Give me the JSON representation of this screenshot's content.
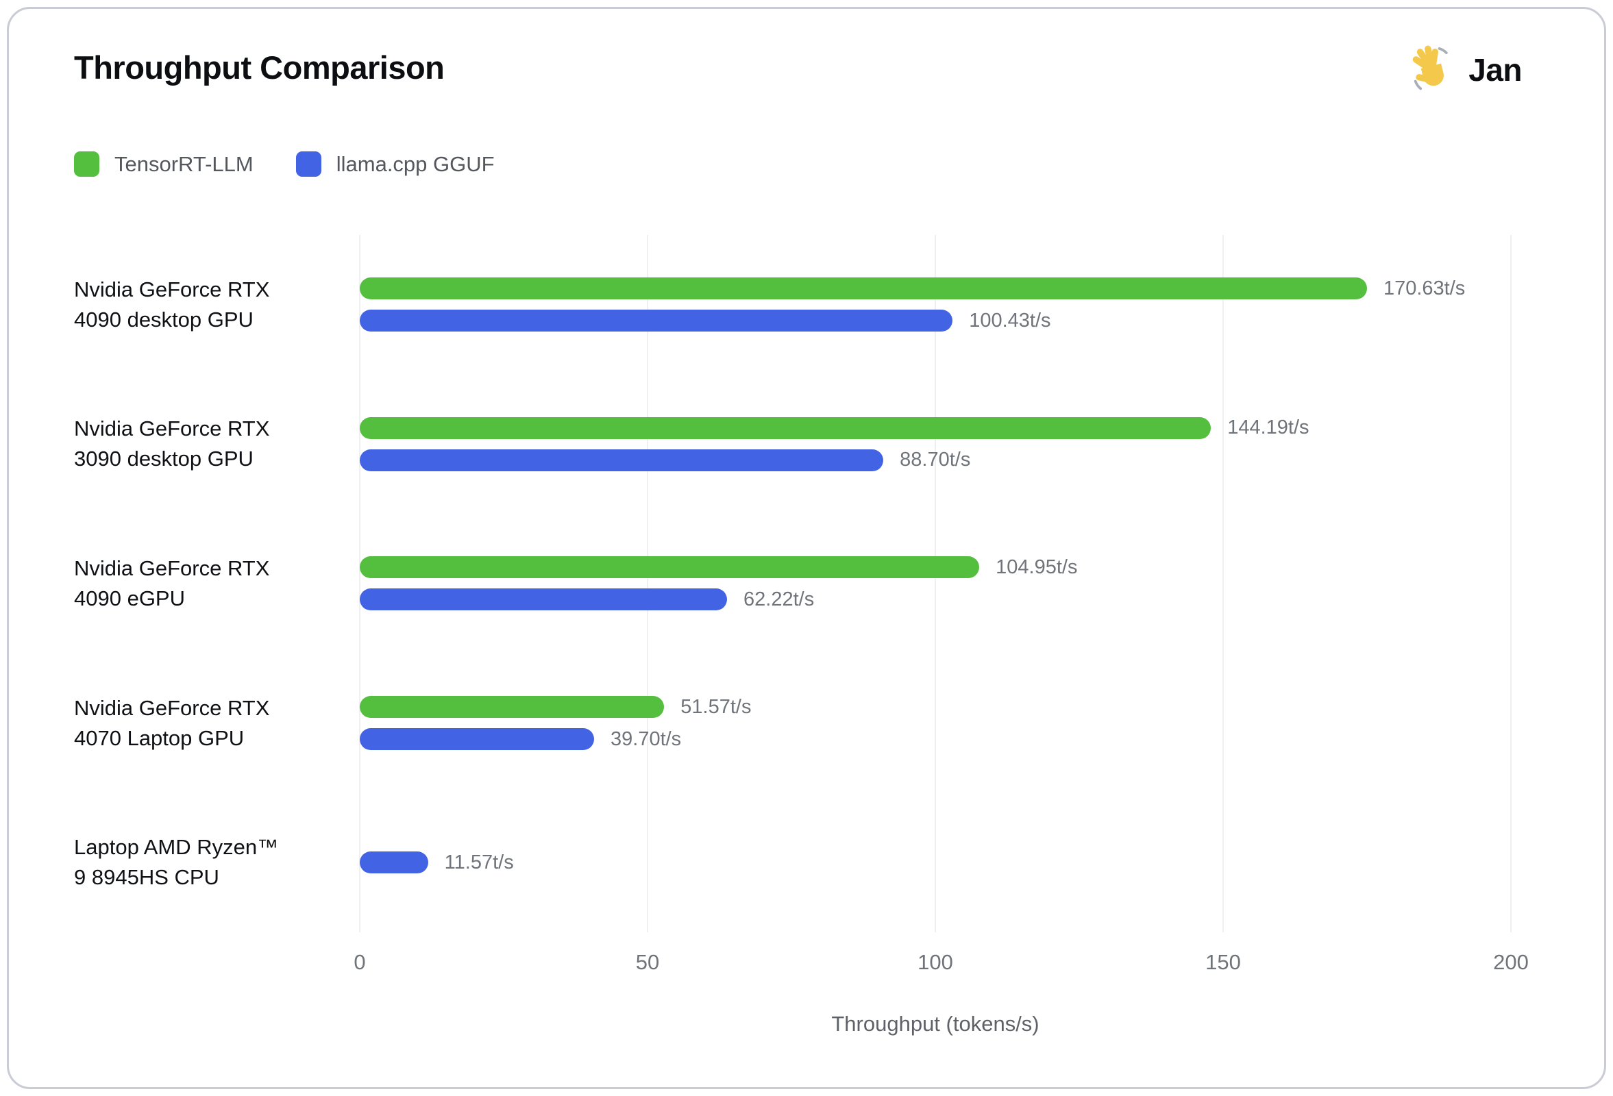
{
  "header": {
    "title": "Throughput Comparison",
    "logo_text": "Jan",
    "logo_icon": "waving-hand-emoji"
  },
  "legend": [
    {
      "label": "TensorRT-LLM",
      "color": "#54be3e"
    },
    {
      "label": "llama.cpp GGUF",
      "color": "#4263e3"
    }
  ],
  "chart_data": {
    "type": "bar",
    "orientation": "horizontal",
    "title": "Throughput Comparison",
    "xlabel": "Throughput (tokens/s)",
    "xlim": [
      0,
      200
    ],
    "x_ticks": [
      "0",
      "50",
      "100",
      "150",
      "200"
    ],
    "grid": "vertical",
    "legend_position": "top-left",
    "unit": "t/s",
    "series_names": [
      "TensorRT-LLM",
      "llama.cpp GGUF"
    ],
    "colors": {
      "TensorRT-LLM": "#54be3e",
      "llama.cpp GGUF": "#4263e3"
    },
    "rows": [
      {
        "label_lines": [
          "Nvidia GeForce RTX",
          "4090 desktop GPU"
        ],
        "bars": [
          {
            "series": "TensorRT-LLM",
            "value": 170.63,
            "label": "170.63t/s"
          },
          {
            "series": "llama.cpp GGUF",
            "value": 100.43,
            "label": "100.43t/s"
          }
        ]
      },
      {
        "label_lines": [
          "Nvidia GeForce RTX",
          "3090 desktop GPU"
        ],
        "bars": [
          {
            "series": "TensorRT-LLM",
            "value": 144.19,
            "label": "144.19t/s"
          },
          {
            "series": "llama.cpp GGUF",
            "value": 88.7,
            "label": "88.70t/s"
          }
        ]
      },
      {
        "label_lines": [
          "Nvidia GeForce RTX",
          "4090 eGPU"
        ],
        "bars": [
          {
            "series": "TensorRT-LLM",
            "value": 104.95,
            "label": "104.95t/s"
          },
          {
            "series": "llama.cpp GGUF",
            "value": 62.22,
            "label": "62.22t/s"
          }
        ]
      },
      {
        "label_lines": [
          "Nvidia GeForce RTX",
          "4070 Laptop GPU"
        ],
        "bars": [
          {
            "series": "TensorRT-LLM",
            "value": 51.57,
            "label": "51.57t/s"
          },
          {
            "series": "llama.cpp GGUF",
            "value": 39.7,
            "label": "39.70t/s"
          }
        ]
      },
      {
        "label_lines": [
          "Laptop AMD Ryzen™",
          "9 8945HS CPU"
        ],
        "bars": [
          {
            "series": "llama.cpp GGUF",
            "value": 11.57,
            "label": "11.57t/s"
          }
        ]
      }
    ]
  }
}
